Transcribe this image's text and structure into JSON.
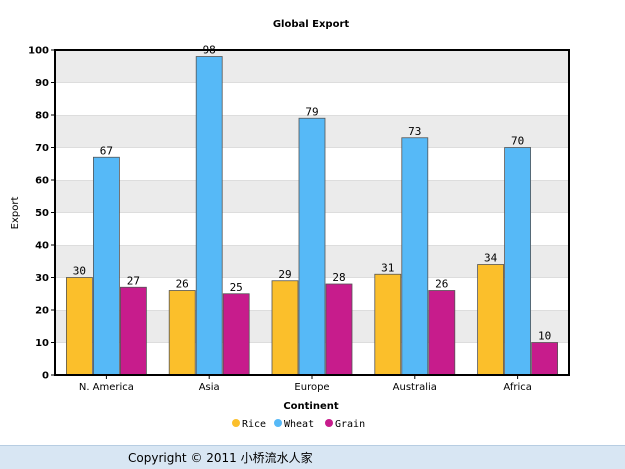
{
  "chart_data": {
    "type": "bar",
    "title": "Global Export",
    "xlabel": "Continent",
    "ylabel": "Export",
    "categories": [
      "N. America",
      "Asia",
      "Europe",
      "Australia",
      "Africa"
    ],
    "series": [
      {
        "name": "Rice",
        "color": "#fbbf2b",
        "values": [
          30,
          26,
          29,
          31,
          34
        ]
      },
      {
        "name": "Wheat",
        "color": "#56b9f7",
        "values": [
          67,
          98,
          79,
          73,
          70
        ]
      },
      {
        "name": "Grain",
        "color": "#c71c8c",
        "values": [
          27,
          25,
          28,
          26,
          10
        ]
      }
    ],
    "ylim": [
      0,
      100
    ],
    "yticks": [
      0,
      10,
      20,
      30,
      40,
      50,
      60,
      70,
      80,
      90,
      100
    ],
    "grid": "alternating horizontal bands",
    "legend": "bottom-center",
    "data_labels": true
  },
  "footer": {
    "text": "Copyright © 2011 小桥流水人家"
  }
}
